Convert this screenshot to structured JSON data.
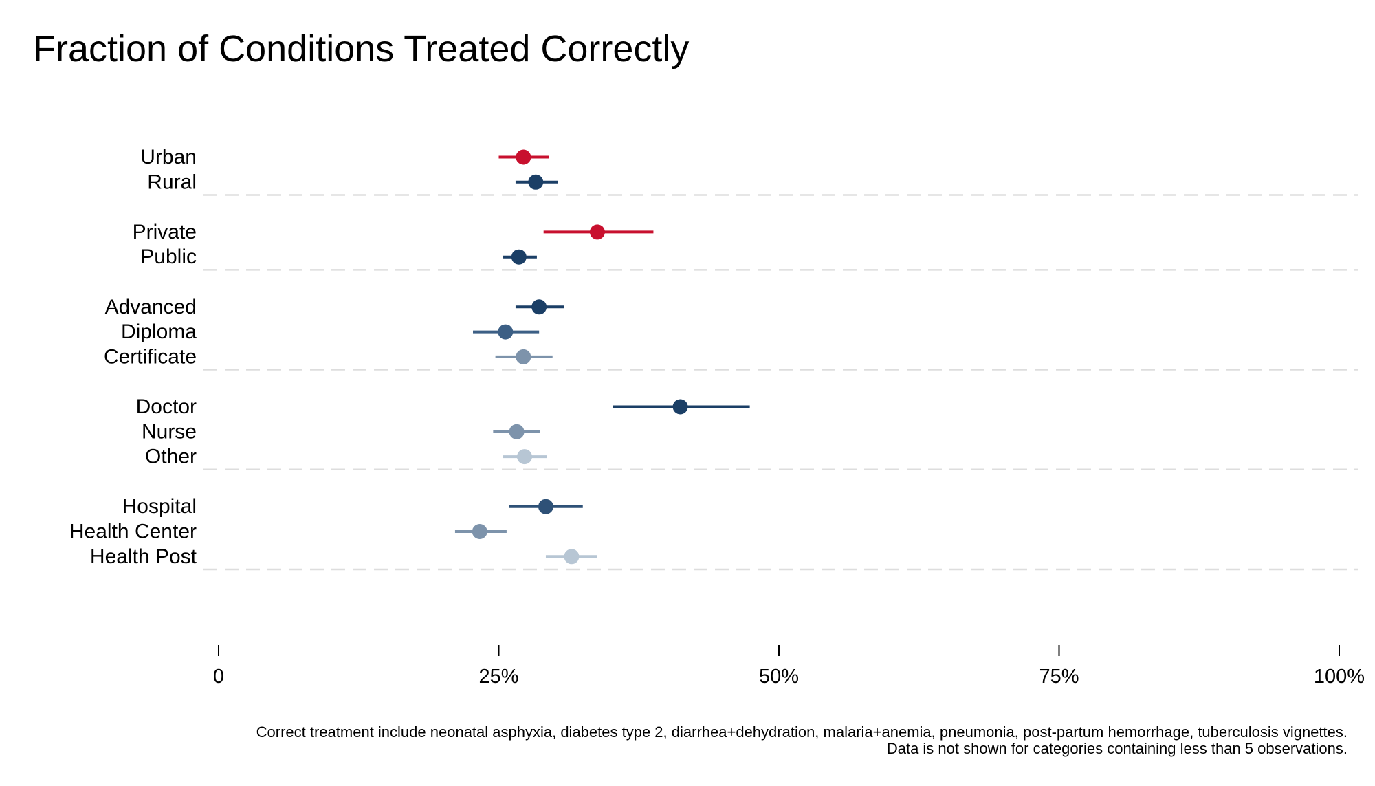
{
  "chart_data": {
    "type": "scatter",
    "subtype": "dot-with-error-bars",
    "title": "Fraction of Conditions Treated Correctly",
    "xlabel": "",
    "ylabel": "",
    "xlim": [
      0,
      1
    ],
    "x_ticks": [
      0,
      0.25,
      0.5,
      0.75,
      1.0
    ],
    "x_tick_labels": [
      "0",
      "25%",
      "50%",
      "75%",
      "100%"
    ],
    "grid": false,
    "legend": "none",
    "groups": [
      {
        "items": [
          {
            "label": "Urban",
            "value": 0.272,
            "low": 0.25,
            "high": 0.295,
            "color": "#C8102E"
          },
          {
            "label": "Rural",
            "value": 0.283,
            "low": 0.265,
            "high": 0.303,
            "color": "#1B3F66"
          }
        ]
      },
      {
        "items": [
          {
            "label": "Private",
            "value": 0.338,
            "low": 0.29,
            "high": 0.388,
            "color": "#C8102E"
          },
          {
            "label": "Public",
            "value": 0.268,
            "low": 0.254,
            "high": 0.284,
            "color": "#1B3F66"
          }
        ]
      },
      {
        "items": [
          {
            "label": "Advanced",
            "value": 0.286,
            "low": 0.265,
            "high": 0.308,
            "color": "#1B3F66"
          },
          {
            "label": "Diploma",
            "value": 0.256,
            "low": 0.227,
            "high": 0.286,
            "color": "#3C5F85"
          },
          {
            "label": "Certificate",
            "value": 0.272,
            "low": 0.247,
            "high": 0.298,
            "color": "#7D93AB"
          }
        ]
      },
      {
        "items": [
          {
            "label": "Doctor",
            "value": 0.412,
            "low": 0.352,
            "high": 0.474,
            "color": "#1B3F66"
          },
          {
            "label": "Nurse",
            "value": 0.266,
            "low": 0.245,
            "high": 0.287,
            "color": "#7D93AB"
          },
          {
            "label": "Other",
            "value": 0.273,
            "low": 0.254,
            "high": 0.293,
            "color": "#B7C6D4"
          }
        ]
      },
      {
        "items": [
          {
            "label": "Hospital",
            "value": 0.292,
            "low": 0.259,
            "high": 0.325,
            "color": "#2E5177"
          },
          {
            "label": "Health Center",
            "value": 0.233,
            "low": 0.211,
            "high": 0.257,
            "color": "#7D93AB"
          },
          {
            "label": "Health Post",
            "value": 0.315,
            "low": 0.292,
            "high": 0.338,
            "color": "#B7C6D4"
          }
        ]
      }
    ],
    "annotations": [
      "Correct treatment include neonatal asphyxia, diabetes type 2, diarrhea+dehydration, malaria+anemia, pneumonia, post-partum hemorrhage, tuberculosis vignettes.",
      "Data is not shown for categories containing less than 5 observations."
    ]
  },
  "colors": {
    "highlight_red": "#C8102E",
    "navy": "#1B3F66",
    "separator": "#DDDDDD",
    "axis": "#000000"
  }
}
